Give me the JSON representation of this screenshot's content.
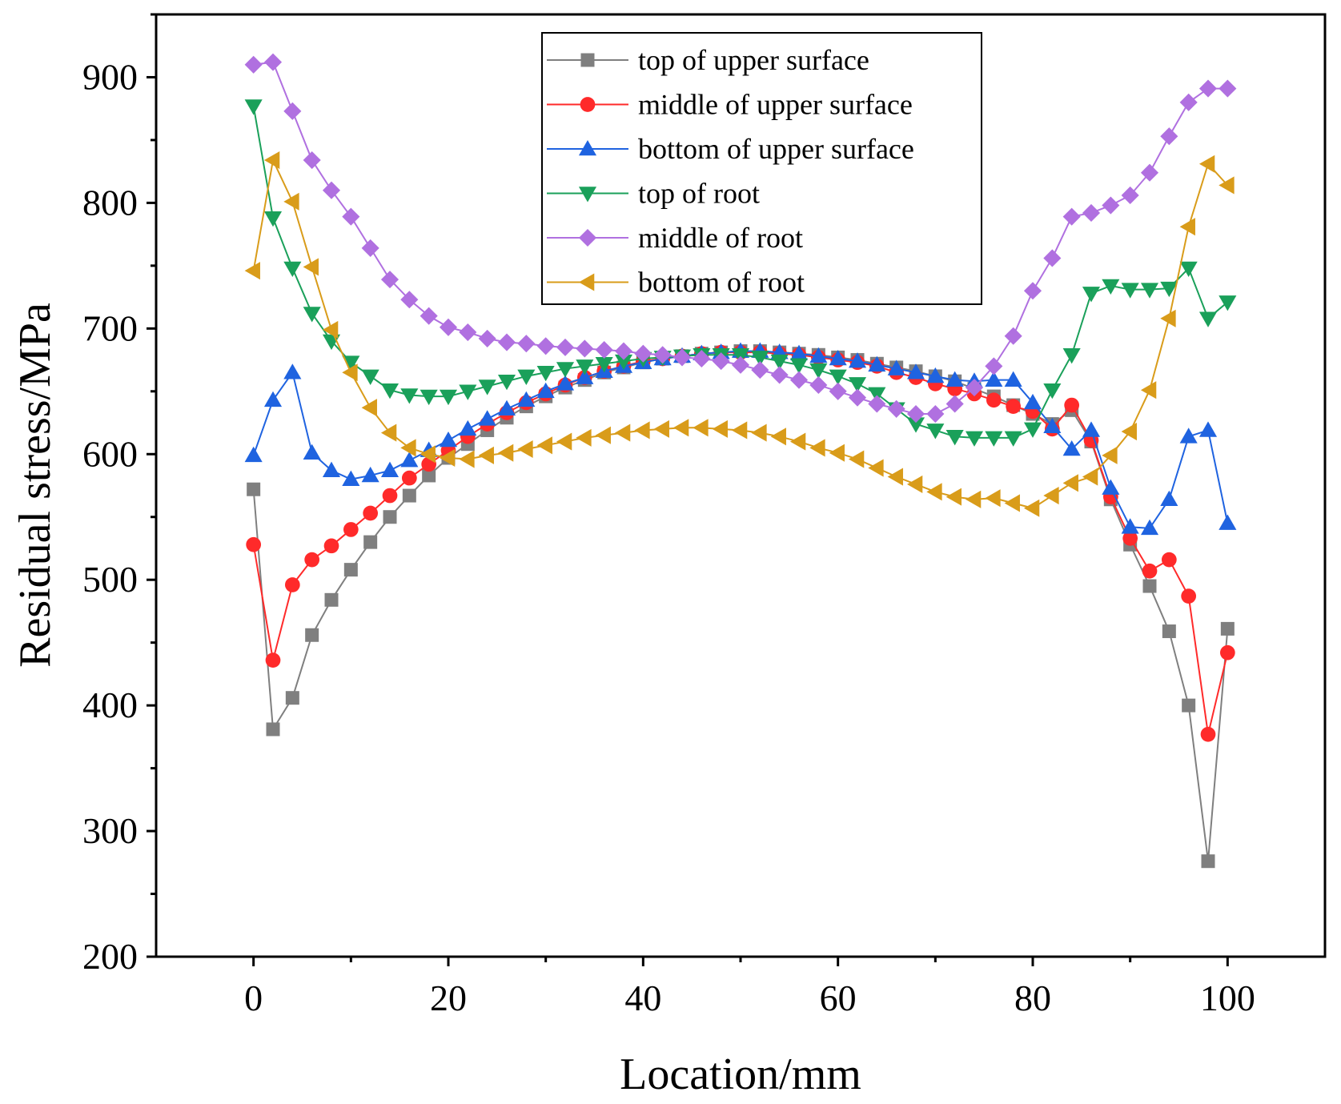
{
  "chart_data": {
    "type": "line",
    "title": "",
    "xlabel": "Location/mm",
    "ylabel": "Residual stress/MPa",
    "xlim": [
      -10,
      110
    ],
    "ylim": [
      200,
      950
    ],
    "xticks": [
      0,
      20,
      40,
      60,
      80,
      100
    ],
    "yticks": [
      200,
      300,
      400,
      500,
      600,
      700,
      800,
      900
    ],
    "legend_position": "top-center",
    "x": [
      0,
      2,
      4,
      6,
      8,
      10,
      12,
      14,
      16,
      18,
      20,
      22,
      24,
      26,
      28,
      30,
      32,
      34,
      36,
      38,
      40,
      42,
      44,
      46,
      48,
      50,
      52,
      54,
      56,
      58,
      60,
      62,
      64,
      66,
      68,
      70,
      72,
      74,
      76,
      78,
      80,
      82,
      84,
      86,
      88,
      90,
      92,
      94,
      96,
      98,
      100
    ],
    "series": [
      {
        "name": "top of upper surface",
        "color": "#7f7f7f",
        "marker": "square",
        "values": [
          572,
          381,
          406,
          456,
          484,
          508,
          530,
          550,
          567,
          583,
          597,
          608,
          619,
          629,
          638,
          646,
          653,
          659,
          665,
          669,
          673,
          676,
          678,
          680,
          681,
          682,
          682,
          681,
          680,
          679,
          677,
          675,
          672,
          669,
          666,
          662,
          658,
          652,
          646,
          639,
          632,
          624,
          635,
          610,
          564,
          528,
          495,
          459,
          400,
          276,
          461
        ]
      },
      {
        "name": "middle of upper surface",
        "color": "#ff2a2a",
        "marker": "circle",
        "values": [
          528,
          436,
          496,
          516,
          527,
          540,
          553,
          567,
          581,
          592,
          603,
          614,
          624,
          633,
          641,
          648,
          655,
          661,
          666,
          670,
          674,
          676,
          678,
          680,
          681,
          681,
          681,
          680,
          679,
          677,
          675,
          673,
          670,
          665,
          661,
          656,
          652,
          648,
          643,
          638,
          634,
          620,
          639,
          611,
          566,
          533,
          507,
          516,
          487,
          377,
          442
        ]
      },
      {
        "name": "bottom of upper surface",
        "color": "#1f63e0",
        "marker": "triangle-up",
        "values": [
          599,
          643,
          665,
          601,
          587,
          580,
          583,
          587,
          595,
          603,
          611,
          620,
          628,
          636,
          643,
          650,
          656,
          661,
          666,
          670,
          673,
          676,
          678,
          680,
          681,
          682,
          682,
          681,
          680,
          678,
          676,
          674,
          671,
          668,
          665,
          662,
          659,
          658,
          659,
          659,
          641,
          622,
          604,
          619,
          573,
          542,
          541,
          564,
          614,
          619,
          545
        ]
      },
      {
        "name": "top of root",
        "color": "#1aa05a",
        "marker": "triangle-down",
        "values": [
          877,
          788,
          748,
          712,
          690,
          673,
          662,
          651,
          647,
          646,
          646,
          650,
          654,
          658,
          662,
          665,
          668,
          670,
          672,
          674,
          676,
          677,
          678,
          679,
          679,
          679,
          677,
          674,
          671,
          667,
          662,
          656,
          648,
          636,
          624,
          619,
          614,
          613,
          613,
          613,
          620,
          651,
          679,
          728,
          734,
          731,
          731,
          732,
          748,
          708,
          721
        ]
      },
      {
        "name": "middle of root",
        "color": "#b070e0",
        "marker": "diamond",
        "values": [
          910,
          912,
          873,
          834,
          810,
          789,
          764,
          739,
          723,
          710,
          701,
          697,
          692,
          689,
          688,
          686,
          685,
          684,
          683,
          682,
          680,
          679,
          677,
          676,
          674,
          671,
          667,
          663,
          659,
          655,
          650,
          645,
          640,
          636,
          632,
          632,
          640,
          653,
          670,
          694,
          730,
          756,
          789,
          792,
          798,
          806,
          824,
          853,
          880,
          891,
          891
        ]
      },
      {
        "name": "bottom of root",
        "color": "#d99c1a",
        "marker": "triangle-left",
        "values": [
          746,
          834,
          801,
          749,
          699,
          665,
          637,
          617,
          605,
          600,
          597,
          596,
          599,
          601,
          604,
          607,
          610,
          613,
          615,
          617,
          619,
          620,
          621,
          621,
          620,
          619,
          617,
          614,
          610,
          605,
          601,
          596,
          589,
          582,
          576,
          570,
          566,
          564,
          565,
          561,
          557,
          567,
          577,
          582,
          599,
          618,
          651,
          708,
          781,
          831,
          814
        ]
      }
    ]
  }
}
